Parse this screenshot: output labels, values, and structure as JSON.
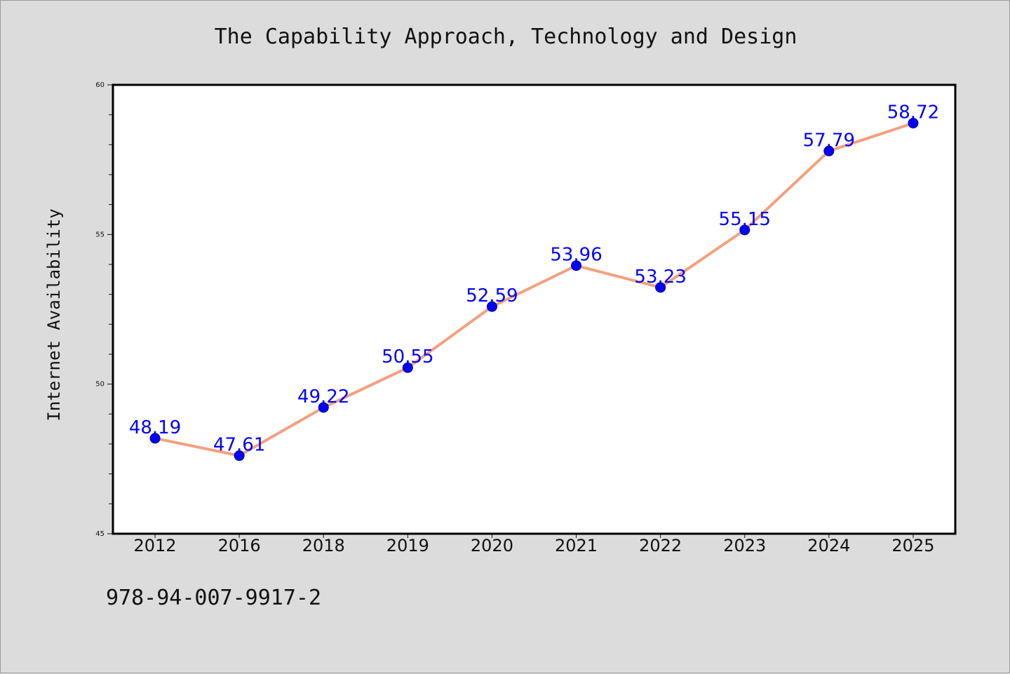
{
  "chart_data": {
    "type": "line",
    "title": "The Capability Approach, Technology and Design",
    "xlabel": "",
    "ylabel": "Internet Availability",
    "categories": [
      "2012",
      "2016",
      "2018",
      "2019",
      "2020",
      "2021",
      "2022",
      "2023",
      "2024",
      "2025"
    ],
    "series": [
      {
        "values": [
          48.19,
          47.61,
          49.22,
          50.55,
          52.59,
          53.96,
          53.23,
          55.15,
          57.79,
          58.72
        ]
      }
    ],
    "data_labels": [
      "48.19",
      "47.61",
      "49.22",
      "50.55",
      "52.59",
      "53.96",
      "53.23",
      "55.15",
      "57.79",
      "58.72"
    ],
    "ylim": [
      45,
      60
    ],
    "yticks": [
      "45",
      "50",
      "55",
      "60"
    ],
    "grid": false,
    "legend": "none",
    "colors": {
      "line": "#f4a07f",
      "marker": "#0000ff",
      "data_label": "#0000ff",
      "background": "#dcdcdc",
      "plot_background": "#ffffff"
    }
  },
  "footnote": "978-94-007-9917-2"
}
